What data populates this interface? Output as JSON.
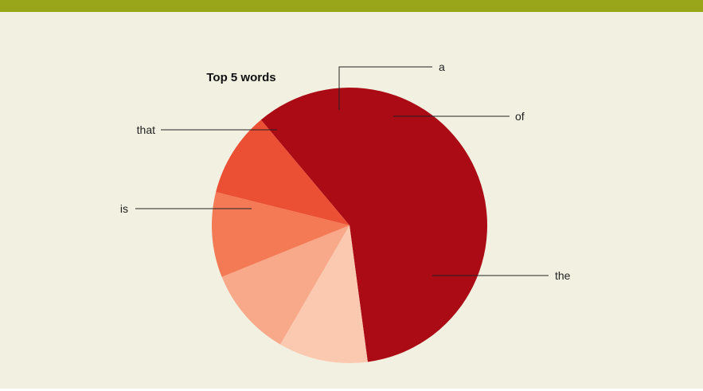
{
  "chart_data": {
    "type": "pie",
    "title": "Top 5 words",
    "categories": [
      "the",
      "is",
      "that",
      "a",
      "of"
    ],
    "values": [
      59,
      10.5,
      10.5,
      10,
      10
    ],
    "colors": [
      "#ab0b15",
      "#fbc8b0",
      "#f8a98a",
      "#f47a55",
      "#ec5034"
    ],
    "legend": "none (labels with leader lines)"
  },
  "colors": {
    "header_bar": "#9aa619",
    "background": "#f2f0e1"
  }
}
